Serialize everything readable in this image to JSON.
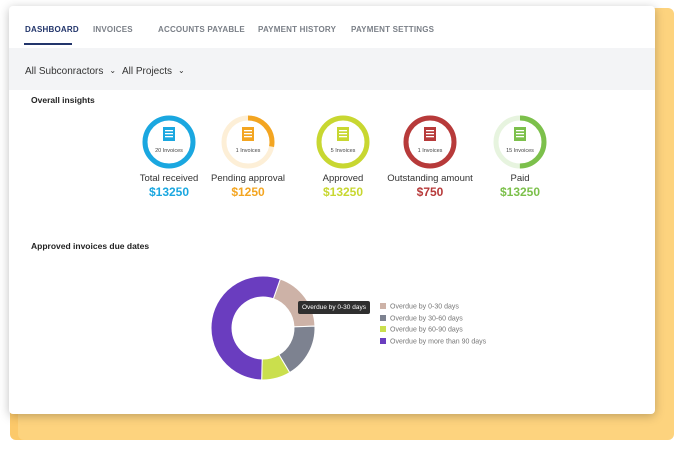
{
  "tabs": [
    {
      "label": "DASHBOARD",
      "active": true
    },
    {
      "label": "INVOICES"
    },
    {
      "label": "ACCOUNTS PAYABLE"
    },
    {
      "label": "PAYMENT HISTORY"
    },
    {
      "label": "PAYMENT SETTINGS"
    }
  ],
  "filters": {
    "subcontractors": "All Subconractors",
    "projects": "All Projects"
  },
  "insights": {
    "title": "Overall insights",
    "items": [
      {
        "label": "Total received",
        "invoices": "20 Invoices",
        "amount": "$13250",
        "color": "#1aa7e0",
        "fraction": 1.0
      },
      {
        "label": "Pending approval",
        "invoices": "1 Invoices",
        "amount": "$1250",
        "color": "#f3a521",
        "fraction": 0.28
      },
      {
        "label": "Approved",
        "invoices": "5 Invoices",
        "amount": "$13250",
        "color": "#c8d731",
        "fraction": 1.0
      },
      {
        "label": "Outstanding amount",
        "invoices": "1 Invoices",
        "amount": "$750",
        "color": "#b73a3a",
        "fraction": 1.0
      },
      {
        "label": "Paid",
        "invoices": "15 Invoices",
        "amount": "$13250",
        "color": "#7cc04b",
        "fraction": 0.5
      }
    ]
  },
  "due_dates": {
    "title": "Approved invoices due dates",
    "tooltip": "Overdue by 0-30 days",
    "chart_data": {
      "type": "pie",
      "variant": "donut",
      "categories": [
        "Overdue by 0-30 days",
        "Overdue by 30-60 days",
        "Overdue by 60-90 days",
        "Overdue by more than 90 days"
      ],
      "values": [
        19,
        17,
        9,
        55
      ],
      "colors": [
        "#cdb2a7",
        "#7d8290",
        "#cadf4d",
        "#6a3dbf"
      ],
      "legend": "right"
    }
  }
}
